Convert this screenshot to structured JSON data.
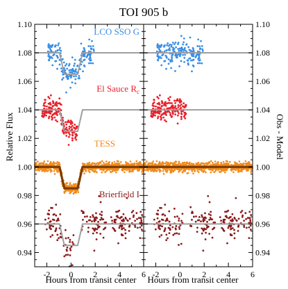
{
  "chart_data": {
    "type": "scatter",
    "title": "TOI 905 b",
    "xlabel": "Hours from transit center",
    "ylabel_left": "Relative Flux",
    "ylabel_right": "Obs - Model",
    "xlim": [
      -3,
      6
    ],
    "ylim": [
      0.93,
      1.1
    ],
    "x_ticks": [
      -2,
      0,
      2,
      4,
      6
    ],
    "y_ticks": [
      0.94,
      0.96,
      0.98,
      1.0,
      1.02,
      1.04,
      1.06,
      1.08,
      1.1
    ],
    "y_tick_labels": [
      "0.94",
      "0.96",
      "0.98",
      "1.00",
      "1.02",
      "1.04",
      "1.06",
      "1.08",
      "1.10"
    ],
    "x_tick_labels": [
      "-2",
      "0",
      "2",
      "4",
      "6"
    ],
    "model": {
      "depth": 0.015,
      "t1": -0.95,
      "t2": -0.55,
      "t3": 0.55,
      "t4": 0.95
    },
    "series": [
      {
        "name": "LCO SSO G",
        "label_main": "LCO SSO G",
        "label_sub": "",
        "color": "#3a8ee6",
        "offset": 1.08,
        "xmin": -1.9,
        "xmax": 1.9,
        "npts": 190,
        "noise": 0.0045,
        "model_end": 6
      },
      {
        "name": "El Sauce Rc",
        "label_main": "El Sauce R",
        "label_sub": "c",
        "color": "#e8202a",
        "offset": 1.04,
        "xmin": -2.4,
        "xmax": 0.6,
        "npts": 180,
        "noise": 0.0035,
        "model_end": 6
      },
      {
        "name": "TESS",
        "label_main": "TESS",
        "label_sub": "",
        "color": "#f08a1c",
        "offset": 1.0,
        "xmin": -3,
        "xmax": 6,
        "npts": 900,
        "noise": 0.0016,
        "model_end": 6
      },
      {
        "name": "Brierfield I",
        "label_main": "Brierfield I",
        "label_sub": "",
        "color": "#8b1a1a",
        "offset": 0.96,
        "segments": [
          [
            -2.2,
            0.3,
            70
          ],
          [
            0.7,
            2.9,
            60
          ],
          [
            3.3,
            4.9,
            60
          ],
          [
            5.0,
            5.9,
            25
          ]
        ],
        "noise": 0.0055,
        "model_end": 6
      }
    ]
  }
}
